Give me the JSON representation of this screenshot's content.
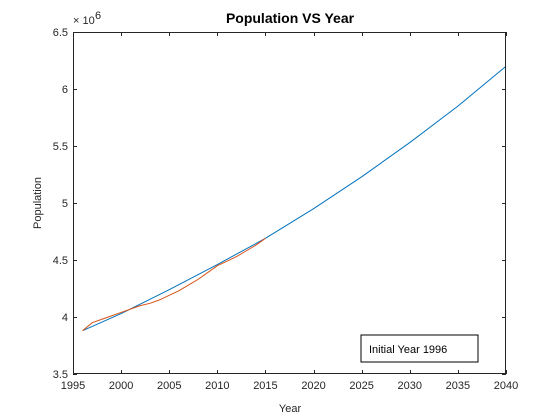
{
  "chart_data": {
    "type": "line",
    "title": "Population VS Year",
    "xlabel": "Year",
    "ylabel": "Population",
    "y_exponent_base": "× 10",
    "y_exponent_power": "6",
    "xlim": [
      1995,
      2040
    ],
    "ylim": [
      3.5,
      6.5
    ],
    "x_ticks": [
      1995,
      2000,
      2005,
      2010,
      2015,
      2020,
      2025,
      2030,
      2035,
      2040
    ],
    "x_tick_labels": [
      "1995",
      "2000",
      "2005",
      "2010",
      "2015",
      "2020",
      "2025",
      "2030",
      "2035",
      "2040"
    ],
    "y_ticks": [
      3.5,
      4,
      4.5,
      5,
      5.5,
      6,
      6.5
    ],
    "y_tick_labels": [
      "3.5",
      "4",
      "4.5",
      "5",
      "5.5",
      "6",
      "6.5"
    ],
    "grid": false,
    "legend": {
      "text": "Initial Year 1996",
      "placement": "bottom-right"
    },
    "series": [
      {
        "color": "#0072BD",
        "x": [
          1996,
          2000,
          2005,
          2010,
          2015,
          2020,
          2025,
          2030,
          2035,
          2040
        ],
        "y": [
          3.88,
          4.03,
          4.24,
          4.46,
          4.69,
          4.95,
          5.23,
          5.53,
          5.85,
          6.2
        ]
      },
      {
        "color": "#D95319",
        "x": [
          1996,
          1997,
          1998,
          1999,
          2000,
          2001,
          2002,
          2003,
          2004,
          2005,
          2006,
          2007,
          2008,
          2009,
          2010,
          2011,
          2012,
          2013,
          2014,
          2015
        ],
        "y": [
          3.88,
          3.95,
          3.98,
          4.01,
          4.04,
          4.07,
          4.1,
          4.12,
          4.15,
          4.19,
          4.23,
          4.28,
          4.33,
          4.39,
          4.45,
          4.49,
          4.53,
          4.58,
          4.63,
          4.69
        ]
      }
    ]
  }
}
